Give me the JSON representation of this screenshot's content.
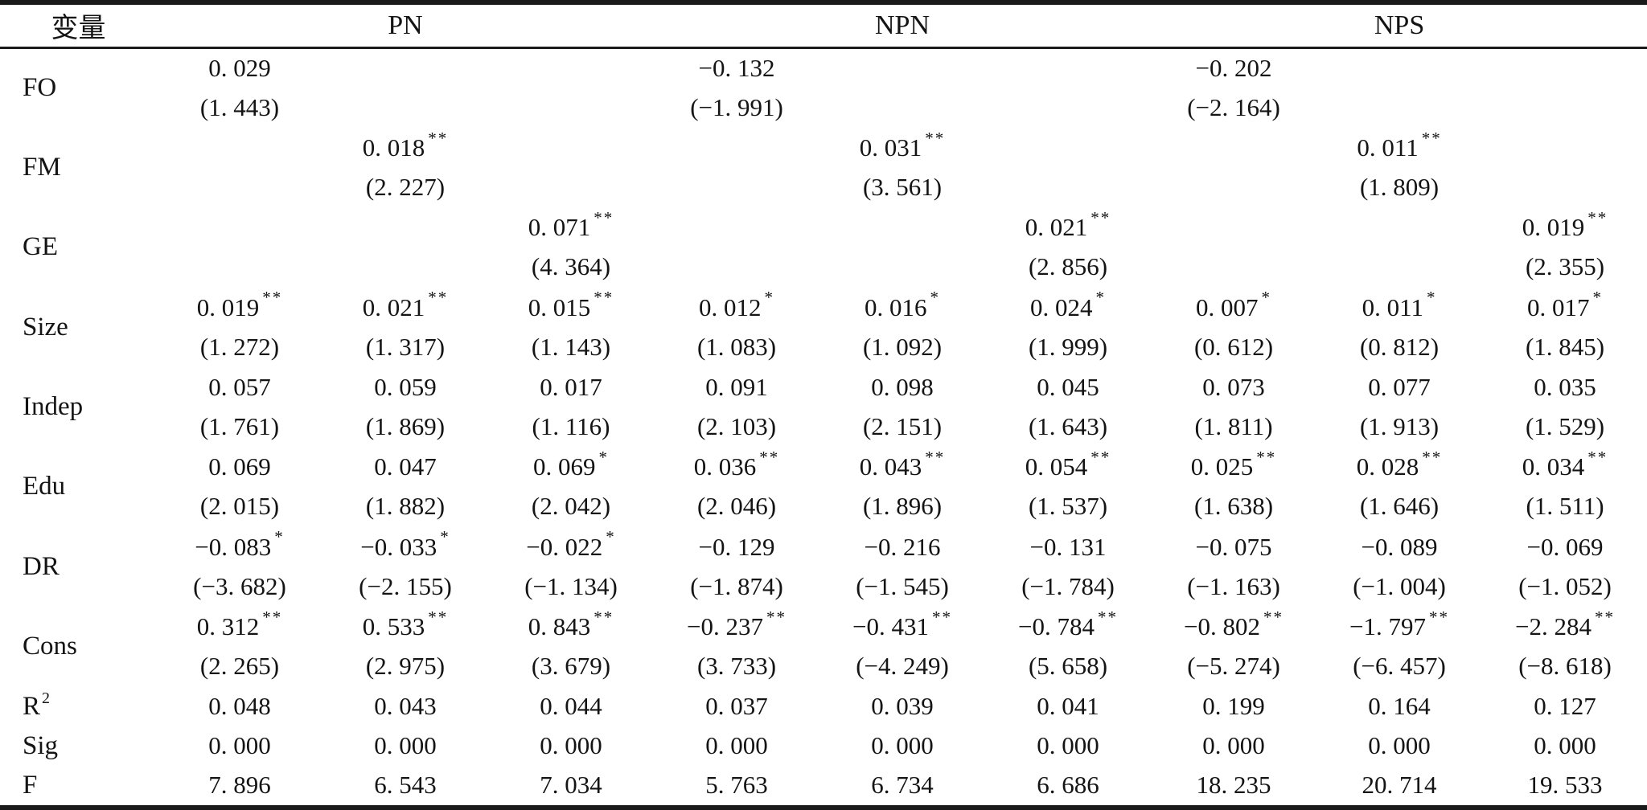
{
  "table": {
    "columns": {
      "variable": "变量",
      "groups": [
        {
          "label": "PN"
        },
        {
          "label": "NPN"
        },
        {
          "label": "NPS"
        }
      ]
    },
    "rows": [
      {
        "label": "FO",
        "type": "pair",
        "coefs": [
          "0. 029",
          "",
          "",
          "−0. 132",
          "",
          "",
          "−0. 202",
          "",
          ""
        ],
        "stars": [
          "",
          "",
          "",
          "",
          "",
          "",
          "",
          "",
          ""
        ],
        "tstats": [
          "(1. 443)",
          "",
          "",
          "(−1. 991)",
          "",
          "",
          "(−2. 164)",
          "",
          ""
        ]
      },
      {
        "label": "FM",
        "type": "pair",
        "coefs": [
          "",
          "0. 018",
          "",
          "",
          "0. 031",
          "",
          "",
          "0. 011",
          ""
        ],
        "stars": [
          "",
          "**",
          "",
          "",
          "**",
          "",
          "",
          "**",
          ""
        ],
        "tstats": [
          "",
          "(2. 227)",
          "",
          "",
          "(3. 561)",
          "",
          "",
          "(1. 809)",
          ""
        ]
      },
      {
        "label": "GE",
        "type": "pair",
        "coefs": [
          "",
          "",
          "0. 071",
          "",
          "",
          "0. 021",
          "",
          "",
          "0. 019"
        ],
        "stars": [
          "",
          "",
          "**",
          "",
          "",
          "**",
          "",
          "",
          "**"
        ],
        "tstats": [
          "",
          "",
          "(4. 364)",
          "",
          "",
          "(2. 856)",
          "",
          "",
          "(2. 355)"
        ]
      },
      {
        "label": "Size",
        "type": "pair",
        "coefs": [
          "0. 019",
          "0. 021",
          "0. 015",
          "0. 012",
          "0. 016",
          "0. 024",
          "0. 007",
          "0. 011",
          "0. 017"
        ],
        "stars": [
          "**",
          "**",
          "**",
          "*",
          "*",
          "*",
          "*",
          "*",
          "*"
        ],
        "tstats": [
          "(1. 272)",
          "(1. 317)",
          "(1. 143)",
          "(1. 083)",
          "(1. 092)",
          "(1. 999)",
          "(0. 612)",
          "(0. 812)",
          "(1. 845)"
        ]
      },
      {
        "label": "Indep",
        "type": "pair",
        "coefs": [
          "0. 057",
          "0. 059",
          "0. 017",
          "0. 091",
          "0. 098",
          "0. 045",
          "0. 073",
          "0. 077",
          "0. 035"
        ],
        "stars": [
          "",
          "",
          "",
          "",
          "",
          "",
          "",
          "",
          ""
        ],
        "tstats": [
          "(1. 761)",
          "(1. 869)",
          "(1. 116)",
          "(2. 103)",
          "(2. 151)",
          "(1. 643)",
          "(1. 811)",
          "(1. 913)",
          "(1. 529)"
        ]
      },
      {
        "label": "Edu",
        "type": "pair",
        "coefs": [
          "0. 069",
          "0. 047",
          "0. 069",
          "0. 036",
          "0. 043",
          "0. 054",
          "0. 025",
          "0. 028",
          "0. 034"
        ],
        "stars": [
          "",
          "",
          "*",
          "**",
          "**",
          "**",
          "**",
          "**",
          "**"
        ],
        "tstats": [
          "(2. 015)",
          "(1. 882)",
          "(2. 042)",
          "(2. 046)",
          "(1. 896)",
          "(1. 537)",
          "(1. 638)",
          "(1. 646)",
          "(1. 511)"
        ]
      },
      {
        "label": "DR",
        "type": "pair",
        "coefs": [
          "−0. 083",
          "−0. 033",
          "−0. 022",
          "−0. 129",
          "−0. 216",
          "−0. 131",
          "−0. 075",
          "−0. 089",
          "−0. 069"
        ],
        "stars": [
          "*",
          "*",
          "*",
          "",
          "",
          "",
          "",
          "",
          ""
        ],
        "tstats": [
          "(−3. 682)",
          "(−2. 155)",
          "(−1. 134)",
          "(−1. 874)",
          "(−1. 545)",
          "(−1. 784)",
          "(−1. 163)",
          "(−1. 004)",
          "(−1. 052)"
        ]
      },
      {
        "label": "Cons",
        "type": "pair",
        "coefs": [
          "0. 312",
          "0. 533",
          "0. 843",
          "−0. 237",
          "−0. 431",
          "−0. 784",
          "−0. 802",
          "−1. 797",
          "−2. 284"
        ],
        "stars": [
          "**",
          "**",
          "**",
          "**",
          "**",
          "**",
          "**",
          "**",
          "**"
        ],
        "tstats": [
          "(2. 265)",
          "(2. 975)",
          "(3. 679)",
          "(3. 733)",
          "(−4. 249)",
          "(5. 658)",
          "(−5. 274)",
          "(−6. 457)",
          "(−8. 618)"
        ]
      },
      {
        "label": "R",
        "label_sup": "2",
        "type": "single",
        "values": [
          "0. 048",
          "0. 043",
          "0. 044",
          "0. 037",
          "0. 039",
          "0. 041",
          "0. 199",
          "0. 164",
          "0. 127"
        ]
      },
      {
        "label": "Sig",
        "type": "single",
        "values": [
          "0. 000",
          "0. 000",
          "0. 000",
          "0. 000",
          "0. 000",
          "0. 000",
          "0. 000",
          "0. 000",
          "0. 000"
        ]
      },
      {
        "label": "F",
        "type": "single",
        "values": [
          "7. 896",
          "6. 543",
          "7. 034",
          "5. 763",
          "6. 734",
          "6. 686",
          "18. 235",
          "20. 714",
          "19. 533"
        ]
      }
    ]
  }
}
